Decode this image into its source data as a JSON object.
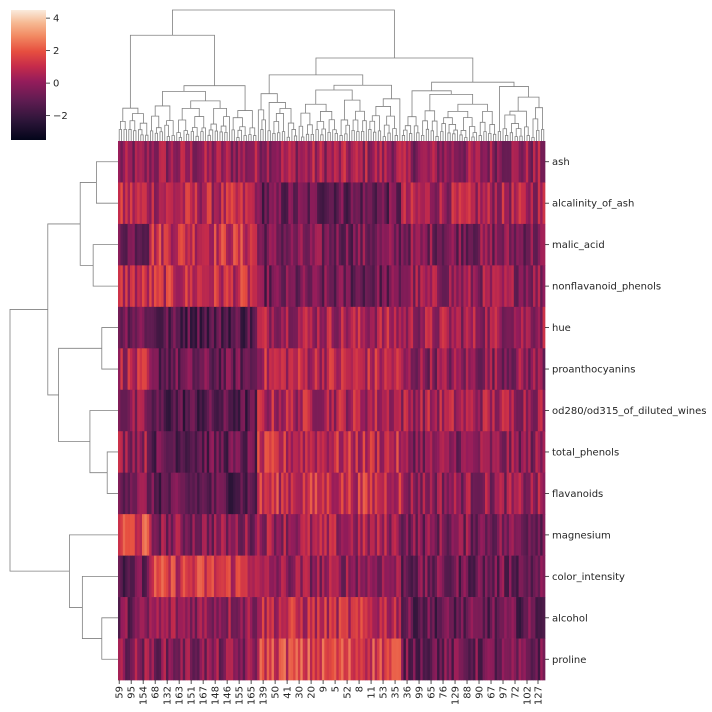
{
  "chart_data": {
    "type": "heatmap",
    "title": "",
    "xlabel": "",
    "ylabel": "",
    "rows": [
      "ash",
      "alcalinity_of_ash",
      "malic_acid",
      "nonflavanoid_phenols",
      "hue",
      "proanthocyanins",
      "od280/od315_of_diluted_wines",
      "total_phenols",
      "flavanoids",
      "magnesium",
      "color_intensity",
      "alcohol",
      "proline"
    ],
    "column_tick_labels": [
      "59",
      "95",
      "154",
      "68",
      "132",
      "163",
      "151",
      "167",
      "148",
      "146",
      "155",
      "165",
      "139",
      "50",
      "41",
      "30",
      "20",
      "9",
      "5",
      "52",
      "8",
      "11",
      "53",
      "35",
      "36",
      "99",
      "65",
      "76",
      "129",
      "88",
      "90",
      "67",
      "97",
      "72",
      "102",
      "127"
    ],
    "n_columns": 178,
    "colorbar": {
      "ticks": [
        4,
        2,
        0,
        -2
      ],
      "tick_labels": [
        "4",
        "2",
        "0",
        "−2"
      ],
      "vmin": -3.5,
      "vmax": 4.5,
      "colormap": "rocket"
    },
    "row_clusters": [
      {
        "label": "ash",
        "block": 1,
        "mean_by_block": [
          -0.2,
          0.1,
          0.3,
          0.0
        ]
      },
      {
        "label": "alcalinity_of_ash",
        "block": 1,
        "mean_by_block": [
          0.8,
          0.7,
          -0.9,
          0.4
        ]
      },
      {
        "label": "malic_acid",
        "block": 1,
        "mean_by_block": [
          -0.5,
          1.2,
          -0.6,
          -0.4
        ]
      },
      {
        "label": "nonflavanoid_phenols",
        "block": 1,
        "mean_by_block": [
          0.9,
          1.0,
          -0.8,
          0.0
        ]
      },
      {
        "label": "hue",
        "block": 2,
        "mean_by_block": [
          -0.4,
          -1.3,
          0.5,
          0.3
        ]
      },
      {
        "label": "proanthocyanins",
        "block": 2,
        "mean_by_block": [
          0.6,
          -0.9,
          0.8,
          -0.1
        ]
      },
      {
        "label": "od280/od315_of_diluted_wines",
        "block": 2,
        "mean_by_block": [
          -0.3,
          -1.4,
          0.6,
          0.4
        ]
      },
      {
        "label": "total_phenols",
        "block": 2,
        "mean_by_block": [
          0.2,
          -1.0,
          0.9,
          -0.2
        ]
      },
      {
        "label": "flavanoids",
        "block": 2,
        "mean_by_block": [
          -0.3,
          -1.2,
          1.1,
          0.0
        ]
      },
      {
        "label": "magnesium",
        "block": 3,
        "mean_by_block": [
          1.6,
          -0.2,
          0.3,
          -0.4
        ]
      },
      {
        "label": "color_intensity",
        "block": 3,
        "mean_by_block": [
          -1.0,
          1.3,
          0.0,
          -0.8
        ]
      },
      {
        "label": "alcohol",
        "block": 3,
        "mean_by_block": [
          -0.6,
          0.1,
          0.9,
          -1.0
        ]
      },
      {
        "label": "proline",
        "block": 3,
        "mean_by_block": [
          -0.2,
          -0.3,
          1.6,
          -0.8
        ]
      }
    ]
  }
}
